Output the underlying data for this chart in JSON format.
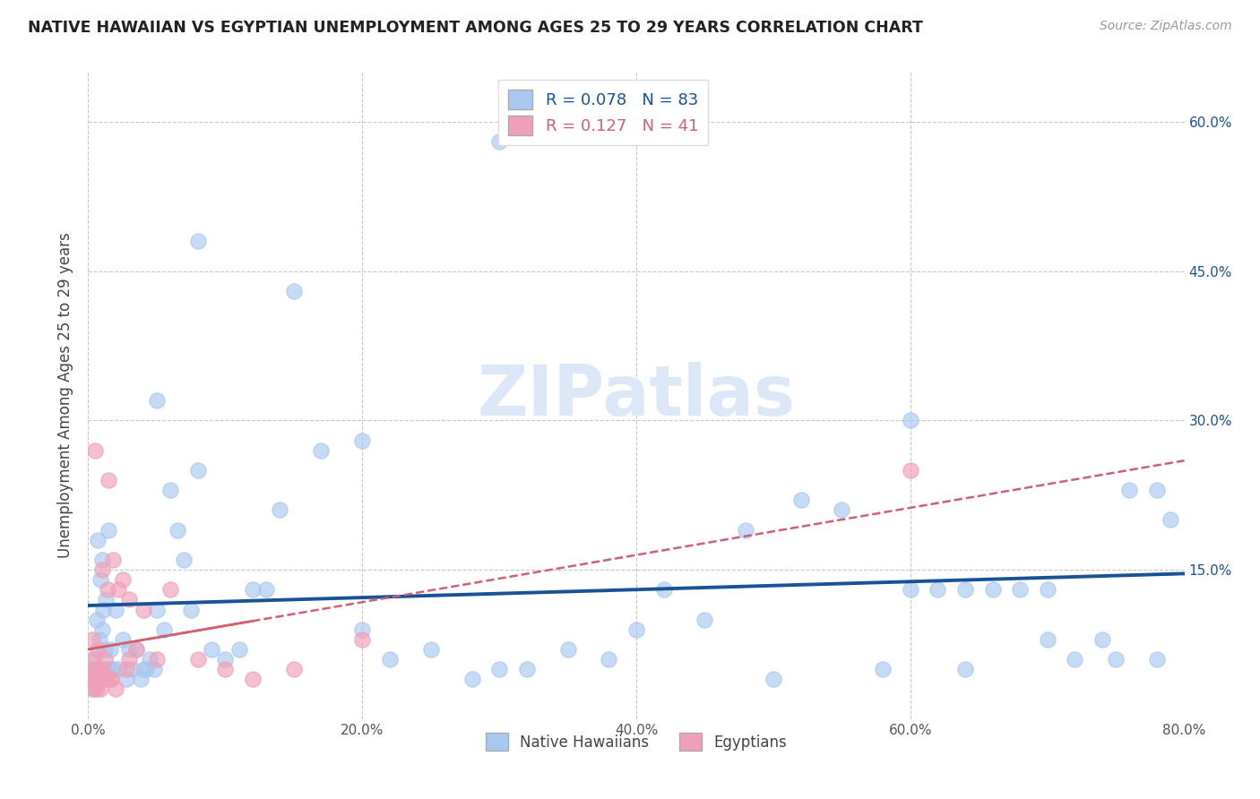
{
  "title": "NATIVE HAWAIIAN VS EGYPTIAN UNEMPLOYMENT AMONG AGES 25 TO 29 YEARS CORRELATION CHART",
  "source": "Source: ZipAtlas.com",
  "ylabel": "Unemployment Among Ages 25 to 29 years",
  "xlim": [
    0.0,
    0.8
  ],
  "ylim": [
    0.0,
    0.65
  ],
  "xticks": [
    0.0,
    0.2,
    0.4,
    0.6,
    0.8
  ],
  "xticklabels": [
    "0.0%",
    "20.0%",
    "40.0%",
    "60.0%",
    "80.0%"
  ],
  "yticks": [
    0.0,
    0.15,
    0.3,
    0.45,
    0.6
  ],
  "yticklabels": [
    "",
    "15.0%",
    "30.0%",
    "45.0%",
    "60.0%"
  ],
  "R_hawaiian": 0.078,
  "N_hawaiian": 83,
  "R_egyptian": 0.127,
  "N_egyptian": 41,
  "hawaiian_color": "#a8c8f0",
  "egyptian_color": "#f0a0b8",
  "hawaiian_line_color": "#1a5296",
  "egyptian_line_color": "#d06070",
  "watermark_text_color": "#dce8f8",
  "background_color": "#ffffff",
  "grid_color": "#c8c8c8",
  "hawaiian_x": [
    0.001,
    0.002,
    0.003,
    0.003,
    0.004,
    0.005,
    0.006,
    0.007,
    0.008,
    0.009,
    0.01,
    0.01,
    0.011,
    0.012,
    0.013,
    0.014,
    0.015,
    0.016,
    0.017,
    0.018,
    0.02,
    0.022,
    0.025,
    0.028,
    0.03,
    0.032,
    0.035,
    0.038,
    0.04,
    0.042,
    0.045,
    0.048,
    0.05,
    0.055,
    0.06,
    0.065,
    0.07,
    0.075,
    0.08,
    0.09,
    0.1,
    0.11,
    0.12,
    0.13,
    0.14,
    0.15,
    0.17,
    0.2,
    0.22,
    0.25,
    0.28,
    0.3,
    0.32,
    0.35,
    0.38,
    0.4,
    0.42,
    0.45,
    0.48,
    0.5,
    0.52,
    0.55,
    0.58,
    0.6,
    0.62,
    0.64,
    0.66,
    0.68,
    0.7,
    0.72,
    0.74,
    0.76,
    0.78,
    0.6,
    0.64,
    0.7,
    0.75,
    0.78,
    0.2,
    0.3,
    0.05,
    0.08,
    0.79
  ],
  "hawaiian_y": [
    0.05,
    0.04,
    0.03,
    0.06,
    0.05,
    0.04,
    0.1,
    0.18,
    0.08,
    0.14,
    0.16,
    0.09,
    0.11,
    0.07,
    0.12,
    0.05,
    0.19,
    0.07,
    0.05,
    0.05,
    0.11,
    0.05,
    0.08,
    0.04,
    0.07,
    0.05,
    0.07,
    0.04,
    0.05,
    0.05,
    0.06,
    0.05,
    0.11,
    0.09,
    0.23,
    0.19,
    0.16,
    0.11,
    0.25,
    0.07,
    0.06,
    0.07,
    0.13,
    0.13,
    0.21,
    0.43,
    0.27,
    0.09,
    0.06,
    0.07,
    0.04,
    0.05,
    0.05,
    0.07,
    0.06,
    0.09,
    0.13,
    0.1,
    0.19,
    0.04,
    0.22,
    0.21,
    0.05,
    0.13,
    0.13,
    0.05,
    0.13,
    0.13,
    0.08,
    0.06,
    0.08,
    0.23,
    0.06,
    0.3,
    0.13,
    0.13,
    0.06,
    0.23,
    0.28,
    0.58,
    0.32,
    0.48,
    0.2
  ],
  "egyptian_x": [
    0.001,
    0.002,
    0.003,
    0.003,
    0.004,
    0.004,
    0.005,
    0.005,
    0.006,
    0.006,
    0.007,
    0.007,
    0.008,
    0.008,
    0.009,
    0.01,
    0.01,
    0.011,
    0.012,
    0.013,
    0.014,
    0.015,
    0.016,
    0.017,
    0.018,
    0.02,
    0.022,
    0.025,
    0.028,
    0.03,
    0.035,
    0.04,
    0.05,
    0.06,
    0.08,
    0.1,
    0.12,
    0.15,
    0.2,
    0.6,
    0.03
  ],
  "egyptian_y": [
    0.04,
    0.04,
    0.05,
    0.08,
    0.03,
    0.06,
    0.27,
    0.04,
    0.03,
    0.05,
    0.04,
    0.07,
    0.04,
    0.05,
    0.03,
    0.05,
    0.15,
    0.04,
    0.06,
    0.04,
    0.13,
    0.24,
    0.04,
    0.04,
    0.16,
    0.03,
    0.13,
    0.14,
    0.05,
    0.06,
    0.07,
    0.11,
    0.06,
    0.13,
    0.06,
    0.05,
    0.04,
    0.05,
    0.08,
    0.25,
    0.12
  ]
}
